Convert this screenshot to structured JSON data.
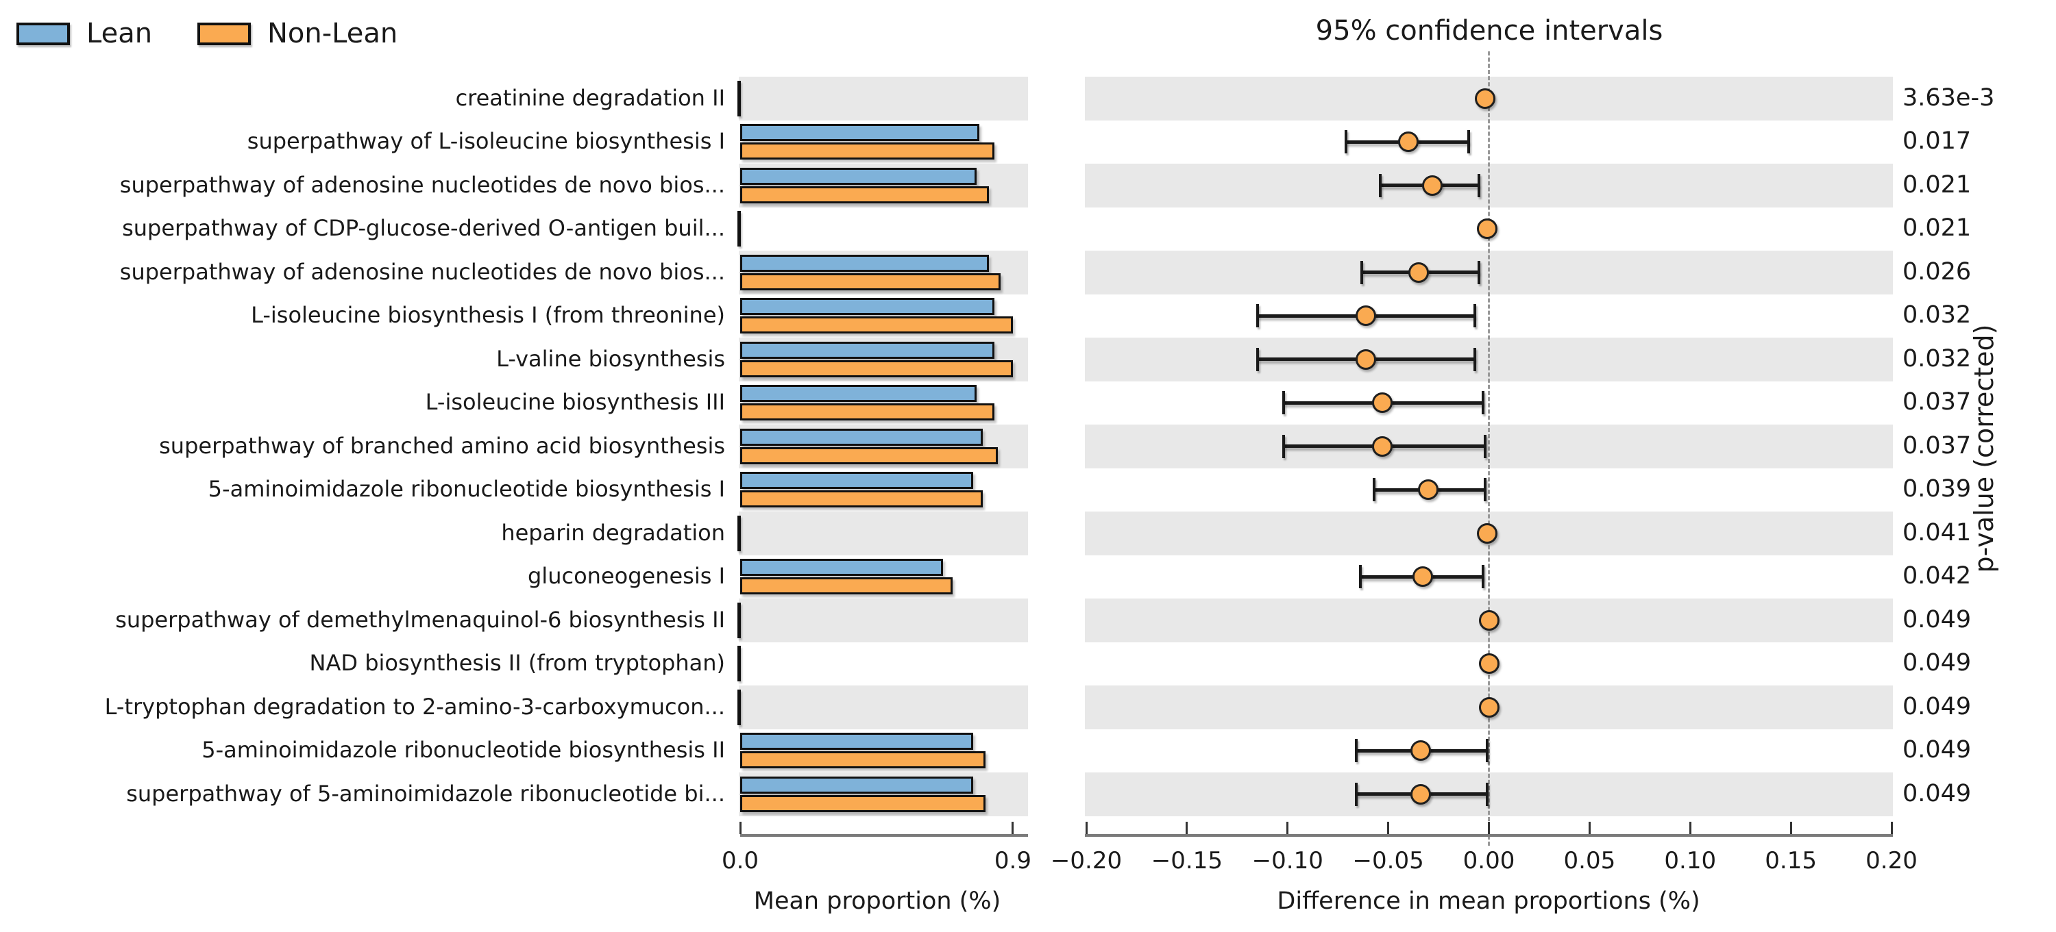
{
  "legend": {
    "items": [
      {
        "label": "Lean",
        "color": "#7FB2D9"
      },
      {
        "label": "Non-Lean",
        "color": "#FAAA51"
      }
    ]
  },
  "colors": {
    "lean": "#7FB2D9",
    "nonlean": "#FAAA51",
    "stripe": "#E8E8E8",
    "axis": "#7a7a7a",
    "errorbar": "#1a1a1a",
    "zero_line": "#999999"
  },
  "chart_data": {
    "type": "bar",
    "subtype": "extended-error-bar",
    "title": "95% confidence intervals",
    "xlabel_left": "Mean proportion (%)",
    "xlabel_right": "Difference in mean proportions (%)",
    "ylabel_right": "p-value (corrected)",
    "xlim_left": [
      0.0,
      0.9
    ],
    "xlim_right": [
      -0.2,
      0.2
    ],
    "left_tick_labels": [
      "0.0",
      "0.9"
    ],
    "left_tick_values": [
      0.0,
      0.9
    ],
    "right_tick_labels": [
      "−0.20",
      "−0.15",
      "−0.10",
      "−0.05",
      "0.00",
      "0.05",
      "0.10",
      "0.15",
      "0.20"
    ],
    "right_tick_values": [
      -0.2,
      -0.15,
      -0.1,
      -0.05,
      0.0,
      0.05,
      0.1,
      0.15,
      0.2
    ],
    "categories": [
      "creatinine degradation II",
      "superpathway of L-isoleucine biosynthesis I",
      "superpathway of adenosine nucleotides de novo bios...",
      "superpathway of CDP-glucose-derived O-antigen buil...",
      "superpathway of adenosine nucleotides de novo bios...",
      "L-isoleucine biosynthesis I (from threonine)",
      "L-valine biosynthesis",
      "L-isoleucine biosynthesis III",
      "superpathway of branched amino acid biosynthesis",
      "5-aminoimidazole ribonucleotide biosynthesis I",
      "heparin degradation",
      "gluconeogenesis I",
      "superpathway of demethylmenaquinol-6 biosynthesis II",
      "NAD biosynthesis II (from tryptophan)",
      "L-tryptophan degradation to 2-amino-3-carboxymucon...",
      "5-aminoimidazole ribonucleotide biosynthesis II",
      "superpathway of 5-aminoimidazole ribonucleotide bi..."
    ],
    "series": [
      {
        "name": "Lean",
        "values": [
          0,
          0.79,
          0.78,
          0,
          0.82,
          0.84,
          0.84,
          0.78,
          0.8,
          0.77,
          0,
          0.67,
          0,
          0,
          0,
          0.77,
          0.77
        ]
      },
      {
        "name": "Non-Lean",
        "values": [
          0,
          0.84,
          0.82,
          0,
          0.86,
          0.9,
          0.9,
          0.84,
          0.85,
          0.8,
          0,
          0.7,
          0,
          0,
          0,
          0.81,
          0.81
        ]
      }
    ],
    "difference": {
      "mean": [
        -0.002,
        -0.04,
        -0.028,
        -0.001,
        -0.035,
        -0.061,
        -0.061,
        -0.053,
        -0.053,
        -0.03,
        -0.001,
        -0.033,
        0.0,
        0.0,
        0.0,
        -0.034,
        -0.034
      ],
      "ci_low": [
        -0.002,
        -0.071,
        -0.054,
        -0.001,
        -0.063,
        -0.115,
        -0.115,
        -0.102,
        -0.102,
        -0.057,
        -0.001,
        -0.064,
        0.0,
        0.0,
        0.0,
        -0.066,
        -0.066
      ],
      "ci_high": [
        -0.002,
        -0.01,
        -0.005,
        -0.001,
        -0.005,
        -0.007,
        -0.007,
        -0.003,
        -0.002,
        -0.002,
        -0.001,
        -0.003,
        0.0,
        0.0,
        0.0,
        -0.001,
        -0.001
      ]
    },
    "p_values": [
      "3.63e-3",
      "0.017",
      "0.021",
      "0.021",
      "0.026",
      "0.032",
      "0.032",
      "0.037",
      "0.037",
      "0.039",
      "0.041",
      "0.042",
      "0.049",
      "0.049",
      "0.049",
      "0.049",
      "0.049"
    ]
  }
}
